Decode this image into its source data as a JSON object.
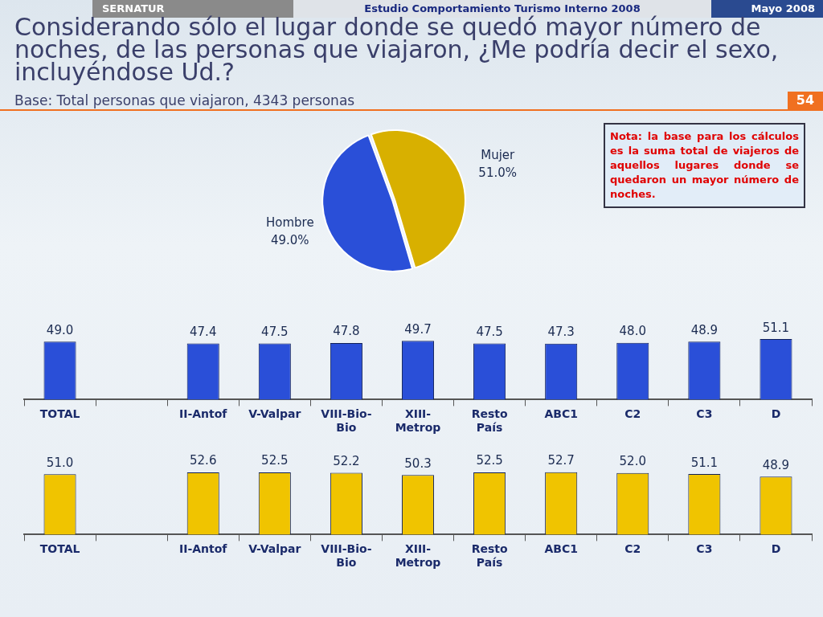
{
  "chart_data": [
    {
      "type": "pie",
      "title": "Considerando sólo el lugar donde se quedó mayor número de noches, de las personas que viajaron, ¿Me podría decir el sexo, incluyéndose Ud.?",
      "subtitle": "Base: Total personas que viajaron, 4343 personas",
      "categories": [
        "Mujer",
        "Hombre"
      ],
      "values": [
        51.0,
        49.0
      ],
      "value_labels": [
        "51.0%",
        "49.0%"
      ],
      "colors": [
        "#d8b000",
        "#2a4fd8"
      ],
      "annotations": [
        "SERNATUR",
        "Estudio Comportamiento Turismo Interno 2008",
        "Mayo 2008",
        "54",
        "Nota: la base para los cálculos es la suma total de viajeros de aquellos lugares donde se quedaron un mayor número de noches."
      ],
      "legend": false
    },
    {
      "type": "bar",
      "categories": [
        "TOTAL",
        null,
        "II-Antof",
        "V-Valpar",
        "VIII-Bio-Bio",
        "XIII-Metrop",
        "Resto País",
        "ABC1",
        "C2",
        "C3",
        "D"
      ],
      "values": [
        49.0,
        null,
        47.4,
        47.5,
        47.8,
        49.7,
        47.5,
        47.3,
        48.0,
        48.9,
        51.1
      ],
      "value_labels": [
        "49.0",
        null,
        "47.4",
        "47.5",
        "47.8",
        "49.7",
        "47.5",
        "47.3",
        "48.0",
        "48.9",
        "51.1"
      ],
      "color": "#2a4fd8",
      "tick_labels": "x",
      "grid": false,
      "legend": false
    },
    {
      "type": "bar",
      "categories": [
        "TOTAL",
        null,
        "II-Antof",
        "V-Valpar",
        "VIII-Bio-Bio",
        "XIII-Metrop",
        "Resto País",
        "ABC1",
        "C2",
        "C3",
        "D"
      ],
      "values": [
        51.0,
        null,
        52.6,
        52.5,
        52.2,
        50.3,
        52.5,
        52.7,
        52.0,
        51.1,
        48.9
      ],
      "value_labels": [
        "51.0",
        null,
        "52.6",
        "52.5",
        "52.2",
        "50.3",
        "52.5",
        "52.7",
        "52.0",
        "51.1",
        "48.9"
      ],
      "color": "#f0c400",
      "tick_labels": "x",
      "grid": false,
      "legend": false
    }
  ]
}
